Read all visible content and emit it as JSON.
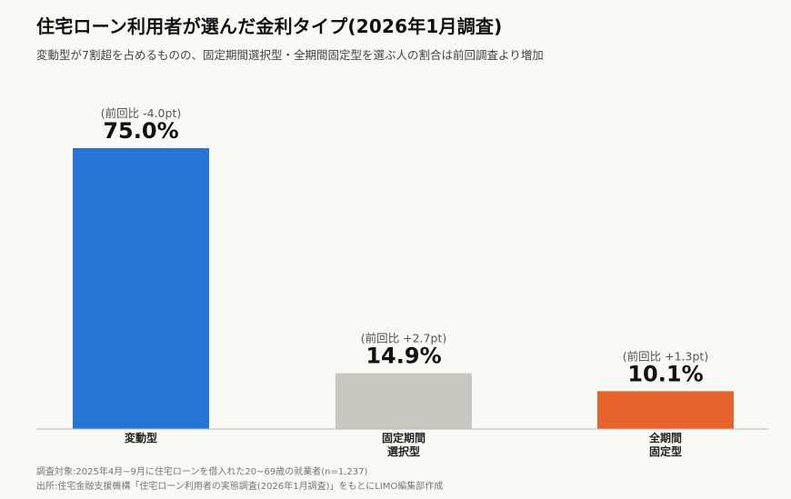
{
  "header": {
    "title": "住宅ローン利用者が選んだ金利タイプ(2026年1月調査)",
    "subtitle": "変動型が7割超を占めるものの、固定期間選択型・全期間固定型を選ぶ人の割合は前回調査より増加"
  },
  "footer": {
    "note": "調査対象:2025年4月~9月に住宅ローンを借入れた20~69歳の就業者(n=1,237)",
    "source": "出所:住宅金融支援機構「住宅ローン利用者の実態調査(2026年1月調査)」をもとにLIMO編集部作成"
  },
  "chart_data": {
    "type": "bar",
    "unit": "%",
    "categories": [
      [
        "変動型"
      ],
      [
        "固定期間",
        "選択型"
      ],
      [
        "全期間",
        "固定型"
      ]
    ],
    "values": [
      75.0,
      14.9,
      10.1
    ],
    "value_labels": [
      "75.0%",
      "14.9%",
      "10.1%"
    ],
    "change_labels": [
      "(前回比 -4.0pt)",
      "(前回比 +2.7pt)",
      "(前回比 +1.3pt)"
    ],
    "colors": [
      "#2675d4",
      "#c9c7c0",
      "#e8642e"
    ],
    "ylim": [
      0,
      100
    ],
    "grid": false
  }
}
